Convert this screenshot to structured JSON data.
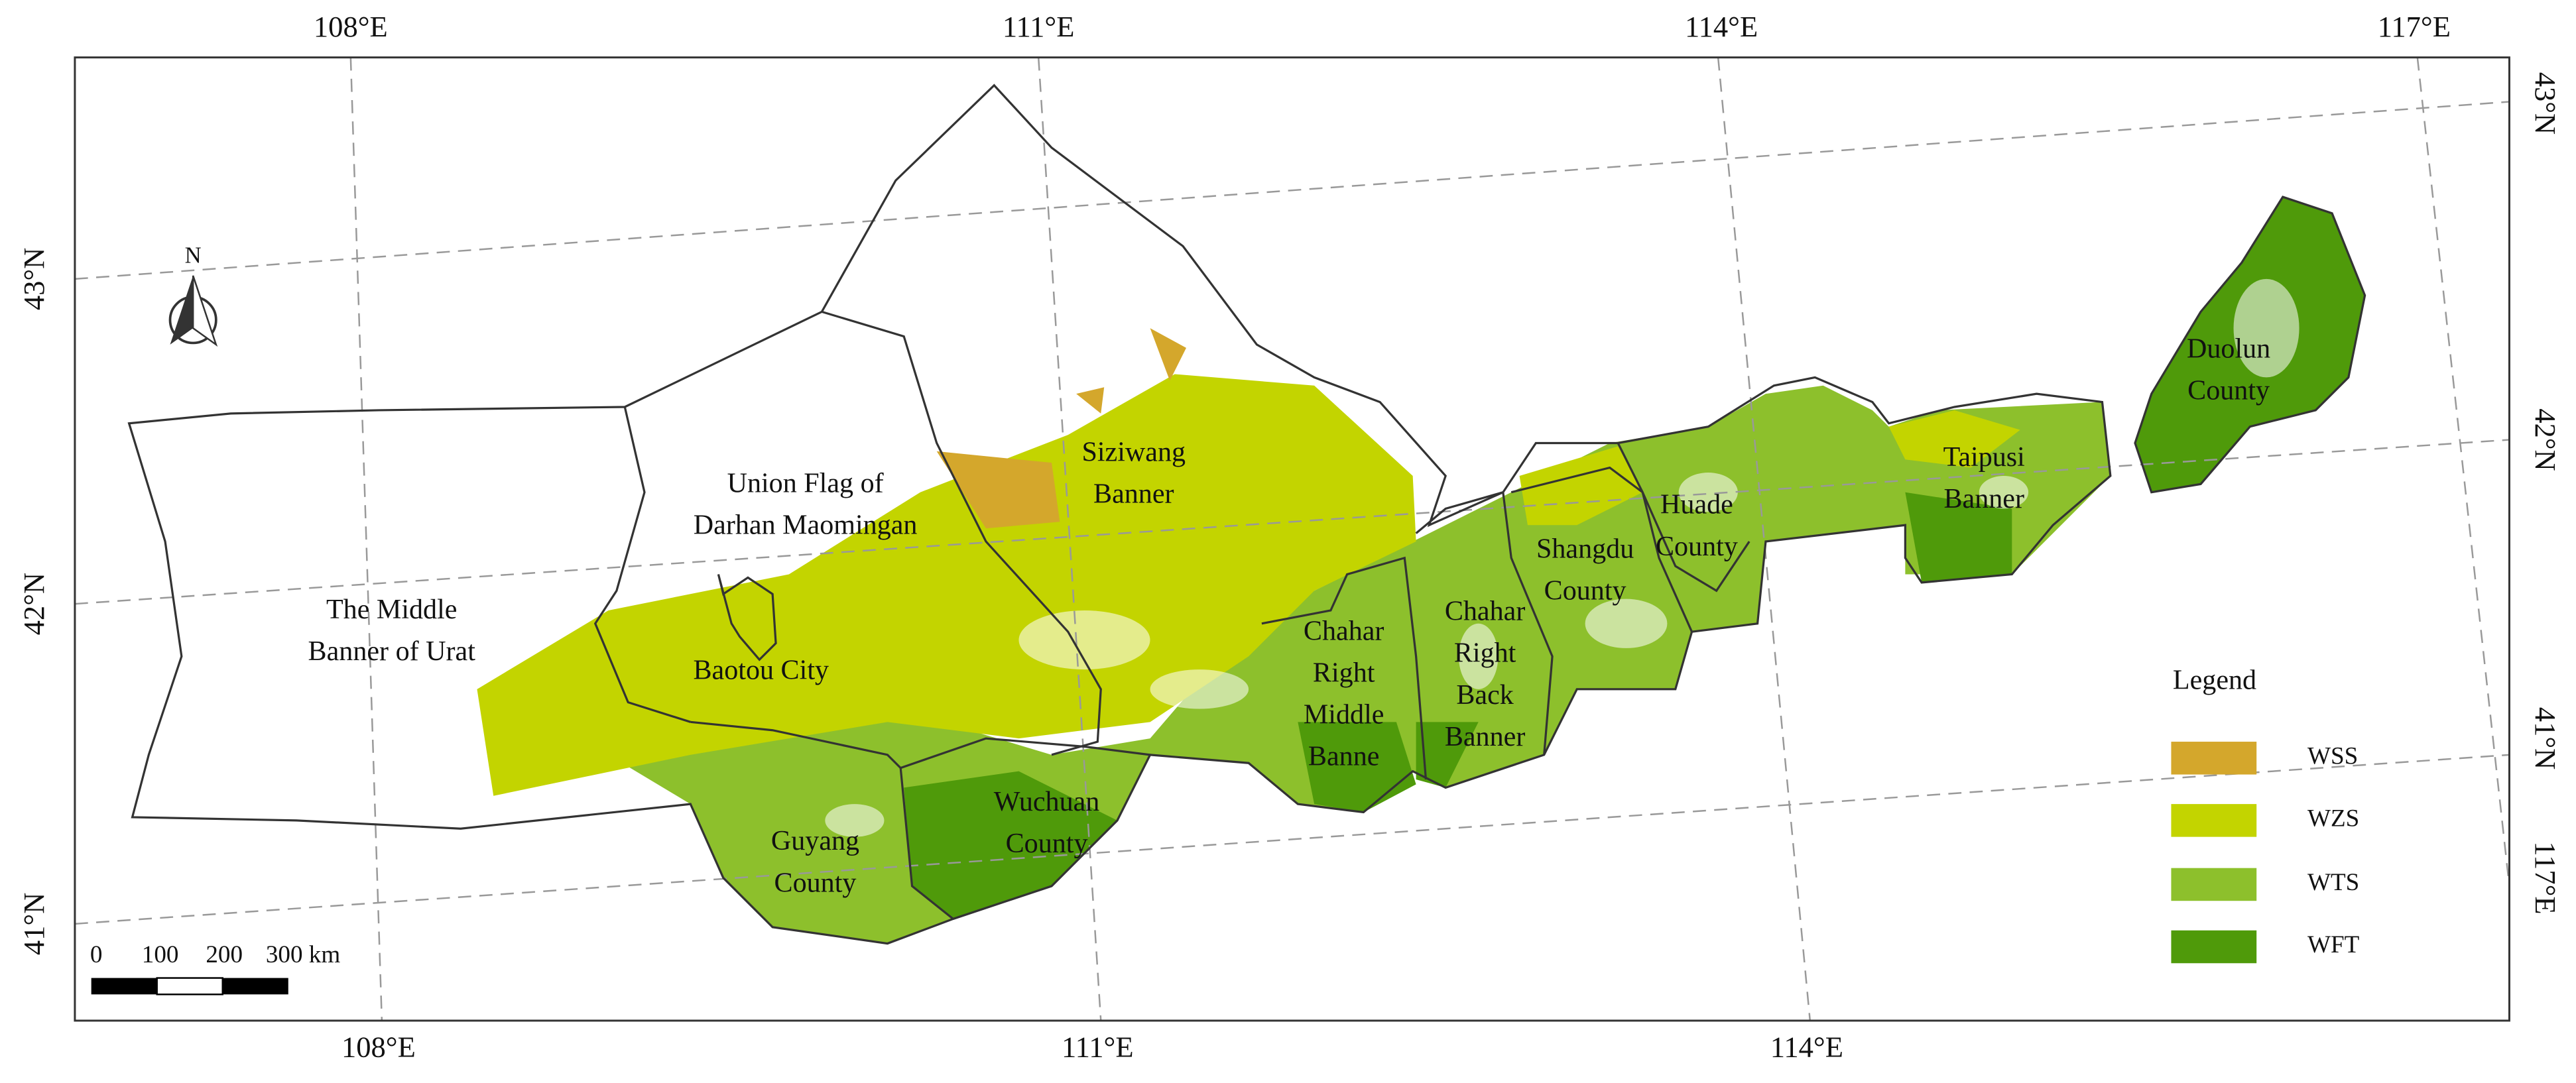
{
  "map": {
    "graticule": {
      "top": [
        "108°E",
        "111°E",
        "114°E",
        "117°E"
      ],
      "bottom": [
        "108°E",
        "111°E",
        "114°E"
      ],
      "left": [
        "43°N",
        "42°N",
        "41°N"
      ],
      "right": [
        "43°N",
        "42°N",
        "41°N",
        "117°E"
      ]
    },
    "north_arrow": "N",
    "regions": [
      {
        "label": [
          "The Middle",
          "Banner of Urat"
        ]
      },
      {
        "label": [
          "Union Flag of",
          "Darhan Maomingan"
        ]
      },
      {
        "label": [
          "Siziwang",
          "Banner"
        ]
      },
      {
        "label": [
          "Baotou City"
        ]
      },
      {
        "label": [
          "Guyang",
          "County"
        ]
      },
      {
        "label": [
          "Wuchuan",
          "County"
        ]
      },
      {
        "label": [
          "Chahar",
          "Right",
          "Middle",
          "Banne"
        ]
      },
      {
        "label": [
          "Chahar",
          "Right",
          "Back",
          "Banner"
        ]
      },
      {
        "label": [
          "Shangdu",
          "County"
        ]
      },
      {
        "label": [
          "Huade",
          "County"
        ]
      },
      {
        "label": [
          "Taipusi",
          "Banner"
        ]
      },
      {
        "label": [
          "Duolun",
          "County"
        ]
      }
    ],
    "legend": {
      "title": "Legend",
      "items": [
        {
          "name": "WSS",
          "color": "#d4a72c"
        },
        {
          "name": "WZS",
          "color": "#c3d400"
        },
        {
          "name": "WTS",
          "color": "#8dc02c"
        },
        {
          "name": "WFT",
          "color": "#4f9a0a"
        }
      ]
    },
    "scale_bar": [
      "0",
      "100",
      "200",
      "300 km"
    ]
  }
}
